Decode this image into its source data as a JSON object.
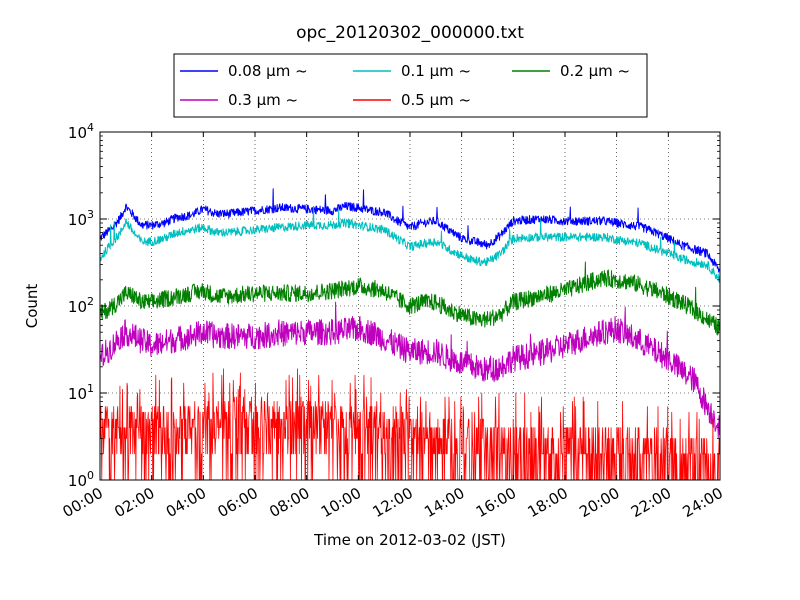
{
  "chart_data": {
    "type": "line",
    "title": "opc_20120302_000000.txt",
    "xlabel": "Time on 2012-03-02 (JST)",
    "ylabel": "Count",
    "y_scale": "log",
    "ylim": [
      1,
      10000
    ],
    "xlim": [
      "00:00",
      "24:00"
    ],
    "x_ticks": [
      "00:00",
      "02:00",
      "04:00",
      "06:00",
      "08:00",
      "10:00",
      "12:00",
      "14:00",
      "16:00",
      "18:00",
      "20:00",
      "22:00",
      "24:00"
    ],
    "y_ticks": [
      {
        "value": 1,
        "base": "10",
        "exp": "0"
      },
      {
        "value": 10,
        "base": "10",
        "exp": "1"
      },
      {
        "value": 100,
        "base": "10",
        "exp": "2"
      },
      {
        "value": 1000,
        "base": "10",
        "exp": "3"
      },
      {
        "value": 10000,
        "base": "10",
        "exp": "4"
      }
    ],
    "grid": true,
    "legend_position": "top-center",
    "x_hours": [
      0,
      0.5,
      0.8,
      1.0,
      1.3,
      1.6,
      2.0,
      2.5,
      3.0,
      3.5,
      4.0,
      4.5,
      5.0,
      6.0,
      7.0,
      8.0,
      9.0,
      9.5,
      10.0,
      10.5,
      11.0,
      11.5,
      12.0,
      12.5,
      13.0,
      13.5,
      14.0,
      14.5,
      15.0,
      15.5,
      16.0,
      17.0,
      18.0,
      19.0,
      19.5,
      20.0,
      20.5,
      21.0,
      21.5,
      22.0,
      22.5,
      23.0,
      23.5,
      24.0
    ],
    "series": [
      {
        "name": "0.08 μm ~",
        "color": "#0000ff",
        "noise": 0.05,
        "values": [
          600,
          800,
          1050,
          1400,
          1100,
          850,
          850,
          900,
          1050,
          1100,
          1300,
          1150,
          1150,
          1250,
          1350,
          1300,
          1250,
          1400,
          1350,
          1250,
          1200,
          950,
          800,
          900,
          950,
          750,
          600,
          550,
          500,
          650,
          950,
          1000,
          950,
          950,
          950,
          900,
          850,
          800,
          700,
          600,
          500,
          450,
          400,
          250
        ]
      },
      {
        "name": "0.1 μm ~",
        "color": "#00bfbf",
        "noise": 0.05,
        "values": [
          350,
          550,
          700,
          950,
          700,
          550,
          550,
          600,
          700,
          750,
          800,
          700,
          700,
          750,
          800,
          850,
          850,
          900,
          850,
          800,
          750,
          600,
          480,
          520,
          550,
          450,
          380,
          330,
          320,
          400,
          600,
          620,
          620,
          620,
          620,
          580,
          550,
          520,
          450,
          400,
          350,
          320,
          300,
          200
        ]
      },
      {
        "name": "0.2 μm ~",
        "color": "#008000",
        "noise": 0.1,
        "values": [
          80,
          100,
          120,
          140,
          130,
          110,
          110,
          120,
          130,
          140,
          150,
          130,
          130,
          140,
          140,
          140,
          150,
          160,
          170,
          160,
          150,
          120,
          100,
          110,
          110,
          90,
          80,
          70,
          70,
          80,
          110,
          130,
          150,
          190,
          210,
          200,
          190,
          170,
          150,
          130,
          110,
          90,
          70,
          55
        ]
      },
      {
        "name": "0.3 μm ~",
        "color": "#bf00bf",
        "noise": 0.15,
        "values": [
          25,
          35,
          45,
          50,
          45,
          40,
          35,
          38,
          42,
          45,
          50,
          45,
          45,
          45,
          48,
          50,
          50,
          52,
          55,
          50,
          42,
          35,
          30,
          30,
          30,
          25,
          22,
          20,
          18,
          20,
          25,
          28,
          35,
          45,
          50,
          55,
          45,
          38,
          30,
          25,
          18,
          14,
          7,
          4
        ]
      },
      {
        "name": "0.5 μm ~",
        "color": "#ff0000",
        "noise": 0,
        "values": [
          3,
          3,
          3,
          3,
          3,
          3,
          3,
          3,
          3,
          3,
          3.5,
          3.5,
          3.5,
          3.5,
          3.5,
          3.5,
          3.5,
          3,
          3,
          3,
          2.5,
          2.5,
          2.2,
          2,
          2,
          2,
          1.8,
          1.8,
          1.8,
          1.8,
          1.8,
          1.8,
          1.8,
          1.8,
          1.8,
          1.8,
          1.8,
          1.5,
          1.5,
          1.5,
          1.4,
          1.4,
          1.3,
          1.2
        ]
      }
    ]
  }
}
